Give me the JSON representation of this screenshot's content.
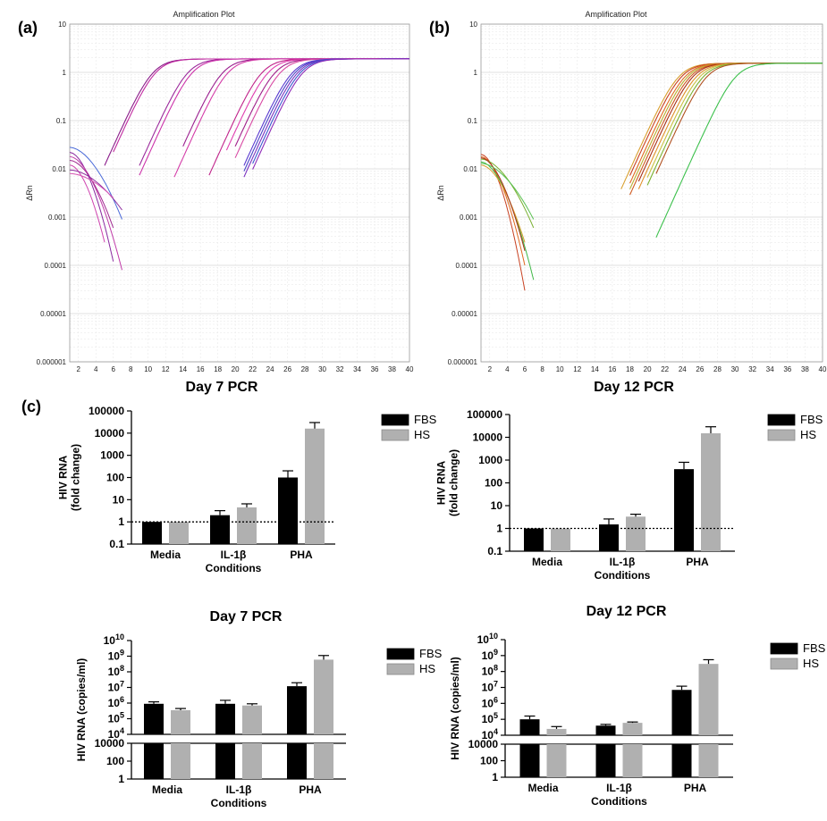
{
  "chart_data": [
    {
      "id": "a",
      "type": "line",
      "panel_label": "(a)",
      "title": "Amplification Plot",
      "caption": "Day 7 PCR",
      "ylabel": "ΔRn",
      "yscale": "log",
      "ylim": [
        1e-06,
        10
      ],
      "xlim": [
        1,
        40
      ],
      "y_ticks": [
        "10",
        "1",
        "0.1",
        "0.01",
        "0.001",
        "0.0001",
        "0.00001",
        "0.000001"
      ],
      "x_ticks": [
        "2",
        "4",
        "6",
        "8",
        "10",
        "12",
        "14",
        "16",
        "18",
        "20",
        "22",
        "24",
        "26",
        "28",
        "30",
        "32",
        "34",
        "36",
        "38",
        "40"
      ],
      "grid": true,
      "curves": [
        {
          "ct": 7.0,
          "color": "#8a1c8a",
          "start": 5,
          "low": 0.00012
        },
        {
          "ct": 7.3,
          "color": "#c02aa0",
          "start": 6,
          "low": 9e-05
        },
        {
          "ct": 11.0,
          "color": "#9c2a9c",
          "start": 9,
          "low": 0.0004
        },
        {
          "ct": 11.5,
          "color": "#cc33aa",
          "start": 9,
          "low": 0.00035
        },
        {
          "ct": 15.0,
          "color": "#9b1f8f",
          "start": 14,
          "low": 7e-05
        },
        {
          "ct": 15.6,
          "color": "#d43ca8",
          "start": 13,
          "low": 0.001
        },
        {
          "ct": 19.5,
          "color": "#c0238a",
          "start": 17,
          "low": 5e-05
        },
        {
          "ct": 20.2,
          "color": "#e040b0",
          "start": 19,
          "low": 2e-05
        },
        {
          "ct": 21.0,
          "color": "#a0208a",
          "start": 20,
          "low": 0.001
        },
        {
          "ct": 21.6,
          "color": "#d84aa4",
          "start": 20,
          "low": 3e-05
        },
        {
          "ct": 23.0,
          "color": "#5a3ad0",
          "start": 21,
          "low": 0.0006
        },
        {
          "ct": 23.3,
          "color": "#4a44c8",
          "start": 21,
          "low": 0.0008
        },
        {
          "ct": 23.6,
          "color": "#7a30c0",
          "start": 21,
          "low": 0.0005
        },
        {
          "ct": 23.9,
          "color": "#3a58d0",
          "start": 22,
          "low": 0.0009
        },
        {
          "ct": 24.2,
          "color": "#8e2ab8",
          "start": 22,
          "low": 0.0004
        }
      ],
      "baseline_curves": [
        {
          "color": "#4a6ad8",
          "start": 0.028,
          "end": 0.0009,
          "endx": 7
        },
        {
          "color": "#8a2aa0",
          "start": 0.022,
          "end": 0.00012,
          "endx": 6
        },
        {
          "color": "#c03aa8",
          "start": 0.018,
          "end": 8e-05,
          "endx": 7
        },
        {
          "color": "#a02890",
          "start": 0.015,
          "end": 0.0006,
          "endx": 6
        },
        {
          "color": "#d044b0",
          "start": 0.012,
          "end": 0.0003,
          "endx": 5
        },
        {
          "color": "#9030a0",
          "start": 0.0095,
          "end": 0.0014,
          "endx": 7
        },
        {
          "color": "#d856b4",
          "start": 0.008,
          "end": 0.0025,
          "endx": 6
        }
      ],
      "plateau": 1.9
    },
    {
      "id": "b",
      "type": "line",
      "panel_label": "(b)",
      "title": "Amplification Plot",
      "caption": "Day 12 PCR",
      "ylabel": "ΔRn",
      "yscale": "log",
      "ylim": [
        1e-06,
        10
      ],
      "xlim": [
        1,
        40
      ],
      "y_ticks": [
        "10",
        "1",
        "0.1",
        "0.01",
        "0.001",
        "0.0001",
        "0.00001",
        "0.000001"
      ],
      "x_ticks": [
        "2",
        "4",
        "6",
        "8",
        "10",
        "12",
        "14",
        "16",
        "18",
        "20",
        "22",
        "24",
        "26",
        "28",
        "30",
        "32",
        "34",
        "36",
        "38",
        "40"
      ],
      "grid": true,
      "curves": [
        {
          "ct": 20.0,
          "color": "#d9a030",
          "start": 17,
          "low": 0.001
        },
        {
          "ct": 20.3,
          "color": "#c84020",
          "start": 18,
          "low": 0.0006
        },
        {
          "ct": 20.7,
          "color": "#e06a20",
          "start": 18,
          "low": 0.0008
        },
        {
          "ct": 21.0,
          "color": "#b8b030",
          "start": 18,
          "low": 0.0002
        },
        {
          "ct": 21.3,
          "color": "#d05a20",
          "start": 18,
          "low": 0.0005
        },
        {
          "ct": 21.6,
          "color": "#a83018",
          "start": 19,
          "low": 0.0004
        },
        {
          "ct": 22.0,
          "color": "#e0902a",
          "start": 19,
          "low": 0.0009
        },
        {
          "ct": 22.4,
          "color": "#c8c040",
          "start": 20,
          "low": 0.0003
        },
        {
          "ct": 22.8,
          "color": "#7ab030",
          "start": 20,
          "low": 0.0012
        },
        {
          "ct": 23.2,
          "color": "#b05020",
          "start": 21,
          "low": 0.0007
        },
        {
          "ct": 26.5,
          "color": "#3cc04c",
          "start": 21,
          "low": 3e-05
        }
      ],
      "baseline_curves": [
        {
          "color": "#c84020",
          "start": 0.02,
          "end": 3e-05,
          "endx": 6
        },
        {
          "color": "#e06a20",
          "start": 0.018,
          "end": 0.0001,
          "endx": 6
        },
        {
          "color": "#7ab030",
          "start": 0.016,
          "end": 0.0006,
          "endx": 7
        },
        {
          "color": "#40b848",
          "start": 0.014,
          "end": 5e-05,
          "endx": 7
        },
        {
          "color": "#d9a030",
          "start": 0.012,
          "end": 0.0003,
          "endx": 6
        },
        {
          "color": "#a83018",
          "start": 0.017,
          "end": 0.0002,
          "endx": 6
        },
        {
          "color": "#58c050",
          "start": 0.013,
          "end": 0.0009,
          "endx": 7
        }
      ],
      "plateau": 1.55
    },
    {
      "id": "c1",
      "type": "bar",
      "panel_label": "(c)",
      "caption": "",
      "ylabel_lines": [
        "HIV RNA",
        "(fold change)"
      ],
      "xlabel": "Conditions",
      "yscale": "log",
      "ylim": [
        0.1,
        100000
      ],
      "y_ticks": [
        "100000",
        "10000",
        "1000",
        "100",
        "10",
        "1",
        "0.1"
      ],
      "reference_line": 1,
      "categories": [
        "Media",
        "IL-1β",
        "PHA"
      ],
      "series": [
        {
          "name": "FBS",
          "color": "#000000",
          "values": [
            1,
            2,
            100
          ],
          "errors": [
            0,
            3.2,
            200
          ]
        },
        {
          "name": "HS",
          "color": "#b0b0b0",
          "values": [
            1,
            4.5,
            16000
          ],
          "errors": [
            0,
            6.5,
            30000
          ]
        }
      ]
    },
    {
      "id": "c2",
      "type": "bar",
      "caption": "",
      "ylabel_lines": [
        "HIV RNA",
        "(fold change)"
      ],
      "xlabel": "Conditions",
      "yscale": "log",
      "ylim": [
        0.1,
        100000
      ],
      "y_ticks": [
        "100000",
        "10000",
        "1000",
        "100",
        "10",
        "1",
        "0.1"
      ],
      "reference_line": 1,
      "categories": [
        "Media",
        "IL-1β",
        "PHA"
      ],
      "series": [
        {
          "name": "FBS",
          "color": "#000000",
          "values": [
            1,
            1.5,
            400
          ],
          "errors": [
            0,
            2.6,
            800
          ]
        },
        {
          "name": "HS",
          "color": "#b0b0b0",
          "values": [
            1,
            3.3,
            15000
          ],
          "errors": [
            0,
            4.2,
            29000
          ]
        }
      ]
    },
    {
      "id": "c3",
      "type": "bar",
      "caption": "Day 7 PCR",
      "ylabel_lines": [
        "HIV RNA (copies/ml)"
      ],
      "xlabel": "Conditions",
      "yscale": "log-broken",
      "upper_range": [
        10000,
        10000000000
      ],
      "lower_range": [
        1,
        10000
      ],
      "upper_ticks": [
        {
          "base": "10",
          "exp": "10"
        },
        {
          "base": "10",
          "exp": "9"
        },
        {
          "base": "10",
          "exp": "8"
        },
        {
          "base": "10",
          "exp": "7"
        },
        {
          "base": "10",
          "exp": "6"
        },
        {
          "base": "10",
          "exp": "5"
        },
        {
          "base": "10",
          "exp": "4"
        }
      ],
      "lower_ticks": [
        "10000",
        "100",
        "1"
      ],
      "categories": [
        "Media",
        "IL-1β",
        "PHA"
      ],
      "series": [
        {
          "name": "FBS",
          "color": "#000000",
          "values": [
            900000,
            900000,
            12000000
          ],
          "errors": [
            1200000,
            1500000,
            20000000
          ]
        },
        {
          "name": "HS",
          "color": "#b0b0b0",
          "values": [
            350000,
            700000,
            600000000
          ],
          "errors": [
            450000,
            900000,
            1100000000
          ]
        }
      ]
    },
    {
      "id": "c4",
      "type": "bar",
      "caption": "Day 12 PCR",
      "ylabel_lines": [
        "HIV RNA (copies/ml)"
      ],
      "xlabel": "Conditions",
      "yscale": "log-broken",
      "upper_range": [
        10000,
        10000000000
      ],
      "lower_range": [
        1,
        10000
      ],
      "upper_ticks": [
        {
          "base": "10",
          "exp": "10"
        },
        {
          "base": "10",
          "exp": "9"
        },
        {
          "base": "10",
          "exp": "8"
        },
        {
          "base": "10",
          "exp": "7"
        },
        {
          "base": "10",
          "exp": "6"
        },
        {
          "base": "10",
          "exp": "5"
        },
        {
          "base": "10",
          "exp": "4"
        }
      ],
      "lower_ticks": [
        "10000",
        "100",
        "1"
      ],
      "categories": [
        "Media",
        "IL-1β",
        "PHA"
      ],
      "series": [
        {
          "name": "FBS",
          "color": "#000000",
          "values": [
            100000,
            40000,
            7000000
          ],
          "errors": [
            160000,
            48000,
            12000000
          ]
        },
        {
          "name": "HS",
          "color": "#b0b0b0",
          "values": [
            25000,
            60000,
            300000000
          ],
          "errors": [
            35000,
            68000,
            550000000
          ]
        }
      ]
    }
  ]
}
